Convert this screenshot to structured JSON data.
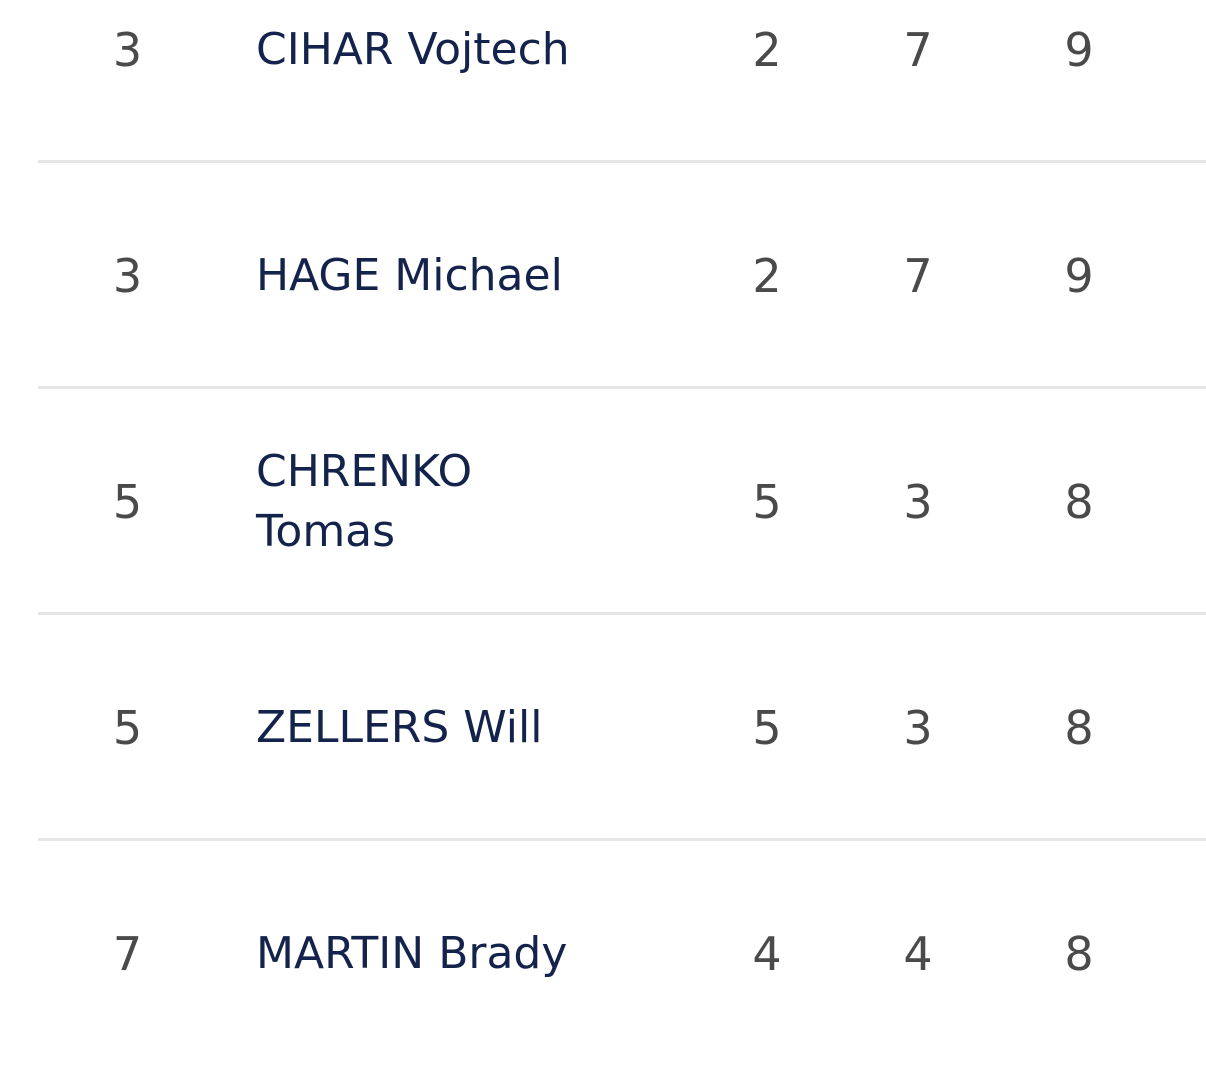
{
  "rows": [
    {
      "rank": "3",
      "name": "CIHAR Vojtech",
      "goals": "2",
      "assists": "7",
      "points": "9"
    },
    {
      "rank": "3",
      "name": "HAGE Michael",
      "goals": "2",
      "assists": "7",
      "points": "9"
    },
    {
      "rank": "5",
      "name": "CHRENKO Tomas",
      "goals": "5",
      "assists": "3",
      "points": "8"
    },
    {
      "rank": "5",
      "name": "ZELLERS Will",
      "goals": "5",
      "assists": "3",
      "points": "8"
    },
    {
      "rank": "7",
      "name": "MARTIN Brady",
      "goals": "4",
      "assists": "4",
      "points": "8"
    }
  ]
}
